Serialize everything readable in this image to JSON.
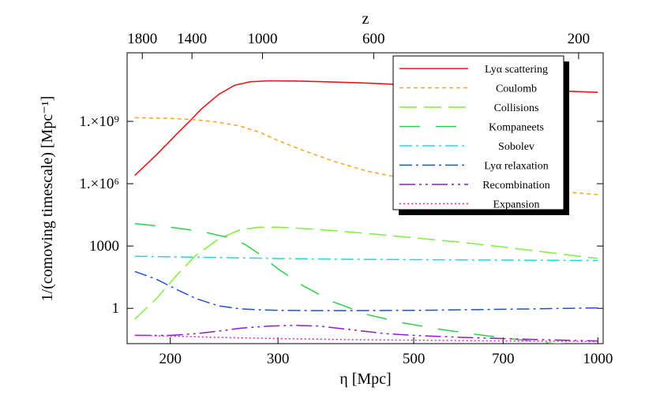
{
  "chart_data": {
    "type": "line",
    "x_scale": "log",
    "y_scale": "log",
    "xlim": [
      170,
      1020
    ],
    "ylim": [
      0.02,
      2000000000000
    ],
    "grid": false,
    "legend_position": "top-right",
    "xlabel": "η [Mpc]",
    "ylabel": "1/(comoving timescale) [Mpc⁻¹]",
    "top_axis_label": "z",
    "x_ticks": [
      {
        "value": 200,
        "label": "200"
      },
      {
        "value": 300,
        "label": "300"
      },
      {
        "value": 500,
        "label": "500"
      },
      {
        "value": 700,
        "label": "700"
      },
      {
        "value": 1000,
        "label": "1000"
      }
    ],
    "y_ticks": [
      {
        "value": 1000000000,
        "label": "1.×10⁹"
      },
      {
        "value": 1000000,
        "label": "1.×10⁶"
      },
      {
        "value": 1000,
        "label": "1000"
      },
      {
        "value": 1,
        "label": "1"
      }
    ],
    "top_ticks": [
      {
        "value": 1800,
        "label": "1800",
        "eta": 180
      },
      {
        "value": 1400,
        "label": "1400",
        "eta": 217
      },
      {
        "value": 1000,
        "label": "1000",
        "eta": 283
      },
      {
        "value": 600,
        "label": "600",
        "eta": 430
      },
      {
        "value": 200,
        "label": "200",
        "eta": 930
      }
    ],
    "series": [
      {
        "name": "Lyα scattering",
        "color": "#e31a1c",
        "dash": "solid",
        "x": [
          175,
          190,
          205,
          215,
          225,
          240,
          255,
          270,
          290,
          320,
          360,
          420,
          500,
          600,
          700,
          850,
          1000
        ],
        "y": [
          2500000,
          25000000,
          250000000,
          1000000000,
          4000000000,
          20000000000,
          55000000000,
          80000000000,
          90000000000,
          88000000000,
          80000000000,
          70000000000,
          55000000000,
          45000000000,
          38000000000,
          30000000000,
          25000000000
        ]
      },
      {
        "name": "Coulomb",
        "color": "#f5a623",
        "dash": "short",
        "x": [
          175,
          200,
          220,
          240,
          260,
          280,
          300,
          330,
          370,
          420,
          480,
          550,
          650,
          800,
          1000
        ],
        "y": [
          1500000000,
          1400000000,
          1200000000,
          900000000,
          600000000,
          300000000,
          120000000,
          40000000,
          12000000,
          4000000,
          1800000,
          1100000,
          800000,
          500000,
          300000
        ]
      },
      {
        "name": "Collisions",
        "color": "#7cf03a",
        "dash": "long",
        "x": [
          175,
          190,
          205,
          220,
          240,
          260,
          280,
          300,
          330,
          370,
          420,
          500,
          600,
          700,
          850,
          1000
        ],
        "y": [
          0.3,
          3,
          40,
          350,
          2200,
          6000,
          8000,
          8000,
          7000,
          5500,
          4000,
          2500,
          1500,
          900,
          450,
          250
        ]
      },
      {
        "name": "Kompaneets",
        "color": "#2bd04a",
        "dash": "long-gap",
        "x": [
          175,
          200,
          225,
          250,
          265,
          280,
          300,
          330,
          370,
          420,
          480,
          550,
          650,
          750,
          850,
          1000
        ],
        "y": [
          12000,
          8000,
          5000,
          2500,
          1200,
          400,
          80,
          12,
          2,
          0.5,
          0.2,
          0.1,
          0.05,
          0.03,
          0.02,
          0.015
        ]
      },
      {
        "name": "Sobolev",
        "color": "#1fd8e0",
        "dash": "dash-dot",
        "x": [
          175,
          220,
          300,
          400,
          500,
          600,
          700,
          850,
          1000
        ],
        "y": [
          320,
          290,
          250,
          230,
          220,
          215,
          210,
          205,
          200
        ]
      },
      {
        "name": "Lyα relaxation",
        "color": "#1f4fd8",
        "dash": "dash-dot",
        "x": [
          175,
          190,
          205,
          220,
          240,
          260,
          280,
          300,
          340,
          400,
          500,
          600,
          700,
          850,
          1000
        ],
        "y": [
          60,
          25,
          8,
          3,
          1.3,
          0.95,
          0.85,
          0.8,
          0.78,
          0.78,
          0.8,
          0.85,
          0.9,
          0.98,
          1.05
        ]
      },
      {
        "name": "Recombination",
        "color": "#8a1fd0",
        "dash": "dash-dot-dot",
        "x": [
          175,
          200,
          220,
          240,
          260,
          290,
          320,
          350,
          400,
          450,
          500,
          600,
          700,
          850,
          1000
        ],
        "y": [
          0.05,
          0.05,
          0.06,
          0.08,
          0.11,
          0.14,
          0.15,
          0.14,
          0.09,
          0.06,
          0.05,
          0.04,
          0.035,
          0.03,
          0.027
        ]
      },
      {
        "name": "Expansion",
        "color": "#e81fc8",
        "dash": "dotted",
        "x": [
          175,
          200,
          250,
          300,
          400,
          500,
          600,
          700,
          850,
          1000
        ],
        "y": [
          0.051,
          0.046,
          0.039,
          0.035,
          0.031,
          0.029,
          0.028,
          0.027,
          0.026,
          0.025
        ]
      }
    ]
  }
}
